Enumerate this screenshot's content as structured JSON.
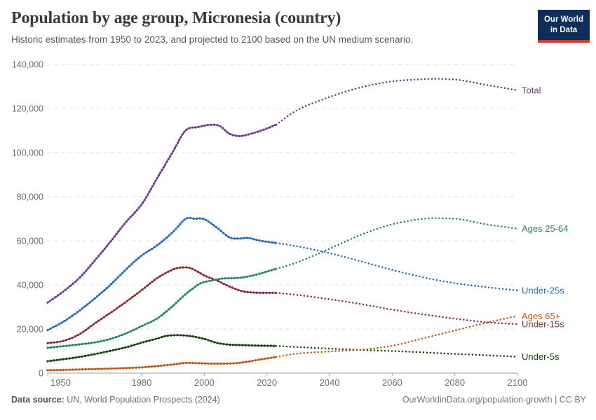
{
  "header": {
    "title": "Population by age group, Micronesia (country)",
    "subtitle": "Historic estimates from 1950 to 2023, and projected to 2100 based on the UN medium scenario."
  },
  "logo": {
    "line1": "Our World",
    "line2": "in Data",
    "bg_color": "#0d2e5a",
    "bar_color": "#d2352c"
  },
  "footer": {
    "source_label": "Data source:",
    "source_text": " UN, World Population Prospects (2024)",
    "credit": "OurWorldinData.org/population-growth | CC BY"
  },
  "chart_data": {
    "type": "line",
    "title": "Population by age group, Micronesia (country)",
    "xlabel": "",
    "ylabel": "",
    "x_range": [
      1950,
      2100
    ],
    "y_range": [
      0,
      140000
    ],
    "x_ticks": [
      1950,
      1980,
      2000,
      2020,
      2040,
      2060,
      2080,
      2100
    ],
    "y_ticks": [
      0,
      20000,
      40000,
      60000,
      80000,
      100000,
      120000,
      140000
    ],
    "grid": true,
    "legend_position": "line-end-labels",
    "projection_start_year": 2023,
    "projection_style": "dotted",
    "axis_text_color": "#6e6e6e",
    "gridline_color": "#dedede",
    "axis_line_color": "#a3a3a3",
    "series": [
      {
        "name": "Total",
        "color": "#6d3e91",
        "historic": [
          [
            1950,
            32000
          ],
          [
            1955,
            37000
          ],
          [
            1960,
            43000
          ],
          [
            1965,
            51000
          ],
          [
            1970,
            59500
          ],
          [
            1975,
            68500
          ],
          [
            1980,
            76500
          ],
          [
            1985,
            88500
          ],
          [
            1990,
            100500
          ],
          [
            1994,
            110000
          ],
          [
            1998,
            111600
          ],
          [
            2002,
            112600
          ],
          [
            2005,
            112000
          ],
          [
            2008,
            108600
          ],
          [
            2011,
            107500
          ],
          [
            2014,
            108200
          ],
          [
            2019,
            110400
          ],
          [
            2023,
            112700
          ]
        ],
        "projected": [
          [
            2023,
            112700
          ],
          [
            2030,
            119500
          ],
          [
            2040,
            125200
          ],
          [
            2050,
            129600
          ],
          [
            2060,
            132300
          ],
          [
            2070,
            133300
          ],
          [
            2076,
            133400
          ],
          [
            2082,
            132800
          ],
          [
            2090,
            130700
          ],
          [
            2100,
            128300
          ]
        ]
      },
      {
        "name": "Under-25s",
        "color": "#286bbb",
        "historic": [
          [
            1950,
            19500
          ],
          [
            1955,
            23300
          ],
          [
            1960,
            28200
          ],
          [
            1965,
            33800
          ],
          [
            1970,
            40000
          ],
          [
            1975,
            47000
          ],
          [
            1980,
            53300
          ],
          [
            1985,
            58000
          ],
          [
            1990,
            64000
          ],
          [
            1994,
            69900
          ],
          [
            1997,
            70000
          ],
          [
            2000,
            69800
          ],
          [
            2004,
            66000
          ],
          [
            2008,
            61600
          ],
          [
            2011,
            61000
          ],
          [
            2014,
            61300
          ],
          [
            2018,
            60000
          ],
          [
            2023,
            59000
          ]
        ],
        "projected": [
          [
            2023,
            59000
          ],
          [
            2030,
            57400
          ],
          [
            2040,
            54400
          ],
          [
            2050,
            50700
          ],
          [
            2060,
            46800
          ],
          [
            2070,
            43400
          ],
          [
            2080,
            40800
          ],
          [
            2090,
            39000
          ],
          [
            2100,
            37500
          ]
        ]
      },
      {
        "name": "Under-15s",
        "color": "#883039",
        "historic": [
          [
            1950,
            13600
          ],
          [
            1955,
            14600
          ],
          [
            1960,
            17500
          ],
          [
            1965,
            22500
          ],
          [
            1970,
            27300
          ],
          [
            1975,
            32300
          ],
          [
            1980,
            37600
          ],
          [
            1985,
            43100
          ],
          [
            1990,
            47000
          ],
          [
            1993,
            47900
          ],
          [
            1996,
            47400
          ],
          [
            2000,
            44300
          ],
          [
            2004,
            42000
          ],
          [
            2008,
            39300
          ],
          [
            2012,
            37200
          ],
          [
            2016,
            36500
          ],
          [
            2020,
            36400
          ],
          [
            2023,
            36400
          ]
        ],
        "projected": [
          [
            2023,
            36400
          ],
          [
            2030,
            35400
          ],
          [
            2040,
            33500
          ],
          [
            2050,
            31300
          ],
          [
            2060,
            28800
          ],
          [
            2070,
            26600
          ],
          [
            2080,
            24700
          ],
          [
            2090,
            23100
          ],
          [
            2100,
            22200
          ]
        ]
      },
      {
        "name": "Ages 25-64",
        "color": "#2c8465",
        "historic": [
          [
            1950,
            11500
          ],
          [
            1955,
            12200
          ],
          [
            1960,
            13000
          ],
          [
            1965,
            13900
          ],
          [
            1970,
            15500
          ],
          [
            1975,
            18000
          ],
          [
            1980,
            21300
          ],
          [
            1985,
            24800
          ],
          [
            1990,
            30500
          ],
          [
            1993,
            34500
          ],
          [
            1996,
            38000
          ],
          [
            1999,
            40800
          ],
          [
            2002,
            41900
          ],
          [
            2006,
            42900
          ],
          [
            2010,
            43100
          ],
          [
            2014,
            43800
          ],
          [
            2018,
            45200
          ],
          [
            2023,
            47300
          ]
        ],
        "projected": [
          [
            2023,
            47300
          ],
          [
            2030,
            50400
          ],
          [
            2040,
            56400
          ],
          [
            2050,
            62700
          ],
          [
            2060,
            67500
          ],
          [
            2070,
            70000
          ],
          [
            2076,
            70200
          ],
          [
            2082,
            69700
          ],
          [
            2090,
            67500
          ],
          [
            2100,
            65500
          ]
        ]
      },
      {
        "name": "Under-5s",
        "color": "#18470f",
        "historic": [
          [
            1950,
            5400
          ],
          [
            1955,
            6300
          ],
          [
            1960,
            7300
          ],
          [
            1965,
            8600
          ],
          [
            1970,
            10100
          ],
          [
            1975,
            11700
          ],
          [
            1980,
            13800
          ],
          [
            1985,
            15700
          ],
          [
            1988,
            16900
          ],
          [
            1992,
            17200
          ],
          [
            1996,
            16700
          ],
          [
            2000,
            15500
          ],
          [
            2004,
            13700
          ],
          [
            2008,
            12900
          ],
          [
            2012,
            12700
          ],
          [
            2016,
            12500
          ],
          [
            2020,
            12400
          ],
          [
            2023,
            12300
          ]
        ],
        "projected": [
          [
            2023,
            12300
          ],
          [
            2030,
            11800
          ],
          [
            2040,
            11100
          ],
          [
            2050,
            10500
          ],
          [
            2060,
            10000
          ],
          [
            2070,
            9400
          ],
          [
            2080,
            8700
          ],
          [
            2090,
            8100
          ],
          [
            2100,
            7400
          ]
        ]
      },
      {
        "name": "Ages 65+",
        "color": "#be5915",
        "historic": [
          [
            1950,
            1300
          ],
          [
            1955,
            1450
          ],
          [
            1960,
            1650
          ],
          [
            1965,
            1850
          ],
          [
            1970,
            2050
          ],
          [
            1975,
            2300
          ],
          [
            1980,
            2600
          ],
          [
            1985,
            3200
          ],
          [
            1990,
            3900
          ],
          [
            1994,
            4600
          ],
          [
            1998,
            4500
          ],
          [
            2002,
            4300
          ],
          [
            2006,
            4300
          ],
          [
            2010,
            4500
          ],
          [
            2014,
            5200
          ],
          [
            2018,
            6200
          ],
          [
            2023,
            7300
          ]
        ],
        "projected": [
          [
            2023,
            7300
          ],
          [
            2030,
            8900
          ],
          [
            2040,
            9800
          ],
          [
            2050,
            10600
          ],
          [
            2060,
            12400
          ],
          [
            2070,
            15800
          ],
          [
            2080,
            19300
          ],
          [
            2090,
            22800
          ],
          [
            2100,
            25900
          ]
        ]
      }
    ]
  }
}
